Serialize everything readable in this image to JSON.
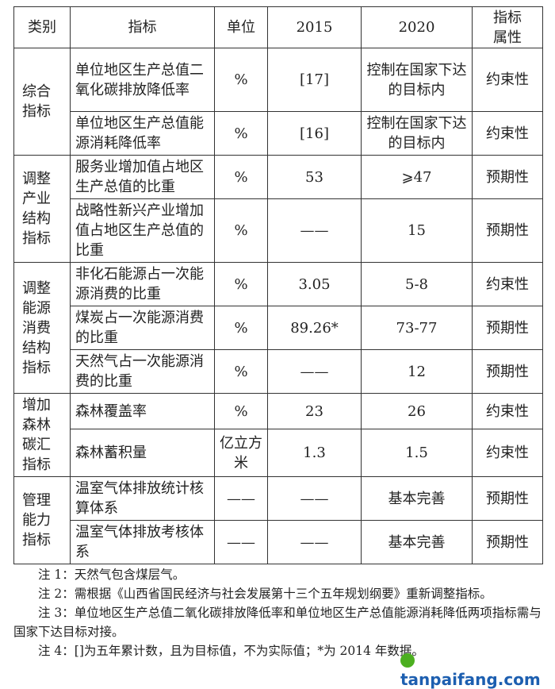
{
  "header": [
    "类别",
    "指标",
    "单位",
    "2015",
    "2020",
    "指标属性"
  ],
  "groups": [
    {
      "category": "综合指标",
      "rows": [
        {
          "indicator": "单位地区生产总值二氧化碳排放降低率",
          "unit": "%",
          "y2015": "[17]",
          "y2020": "控制在国家下达的目标内",
          "attr": "约束性"
        },
        {
          "indicator": "单位地区生产总值能源消耗降低率",
          "unit": "%",
          "y2015": "[16]",
          "y2020": "控制在国家下达的目标内",
          "attr": "约束性"
        }
      ]
    },
    {
      "category": "调整产业结构指标",
      "rows": [
        {
          "indicator": "服务业增加值占地区生产总值的比重",
          "unit": "%",
          "y2015": "53",
          "y2020": "⩾47",
          "attr": "预期性"
        },
        {
          "indicator": "战略性新兴产业增加值占地区生产总值的比重",
          "unit": "%",
          "y2015": "——",
          "y2020": "15",
          "attr": "预期性"
        }
      ]
    },
    {
      "category": "调整能源消费结构指标",
      "rows": [
        {
          "indicator": "非化石能源占一次能源消费的比重",
          "unit": "%",
          "y2015": "3.05",
          "y2020": "5-8",
          "attr": "约束性"
        },
        {
          "indicator": "煤炭占一次能源消费的比重",
          "unit": "%",
          "y2015": "89.26*",
          "y2020": "73-77",
          "attr": "预期性"
        },
        {
          "indicator": "天然气占一次能源消费的比重",
          "unit": "%",
          "y2015": "——",
          "y2020": "12",
          "attr": "预期性"
        }
      ]
    },
    {
      "category": "增加森林碳汇指标",
      "rows": [
        {
          "indicator": "森林覆盖率",
          "unit": "%",
          "y2015": "23",
          "y2020": "26",
          "attr": "约束性"
        },
        {
          "indicator": "森林蓄积量",
          "unit": "亿立方米",
          "y2015": "1.3",
          "y2020": "1.5",
          "attr": "约束性"
        }
      ]
    },
    {
      "category": "管理能力指标",
      "rows": [
        {
          "indicator": "温室气体排放统计核算体系",
          "unit": "——",
          "y2015": "——",
          "y2020": "基本完善",
          "attr": "预期性"
        },
        {
          "indicator": "温室气体排放考核体系",
          "unit": "——",
          "y2015": "——",
          "y2020": "基本完善",
          "attr": "预期性"
        }
      ]
    }
  ],
  "notes": [
    "注 1：天然气包含煤层气。",
    "注 2：需根据《山西省国民经济与社会发展第十三个五年规划纲要》重新调整指标。",
    "注 3：单位地区生产总值二氧化碳排放降低率和单位地区生产总值能源消耗降低两项指标需与国家下达目标对接。",
    "注 4：[]为五年累计数，且为目标值，不为实际值；*为 2014 年数据。"
  ],
  "watermark": "tanpaifang.com"
}
